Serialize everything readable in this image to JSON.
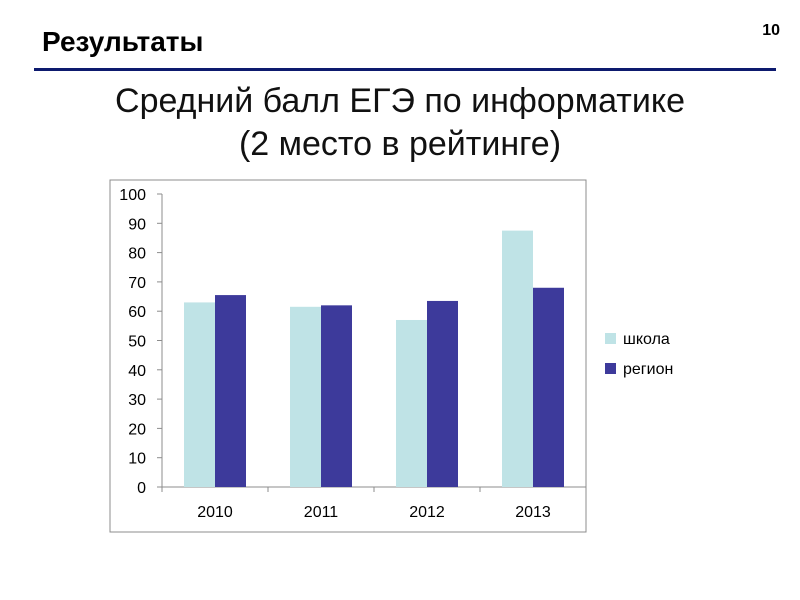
{
  "header": {
    "title": "Результаты",
    "slide_number": "10"
  },
  "chart_title": {
    "line1": "Средний балл ЕГЭ по информатике",
    "line2": "(2 место в рейтинге)"
  },
  "chart_data": {
    "type": "bar",
    "categories": [
      "2010",
      "2011",
      "2012",
      "2013"
    ],
    "series": [
      {
        "name": "школа",
        "values": [
          63,
          61.5,
          57,
          87.5
        ],
        "color": "#bfe3e6"
      },
      {
        "name": "регион",
        "values": [
          65.5,
          62,
          63.5,
          68
        ],
        "color": "#3d3a9b"
      }
    ],
    "ylim": [
      0,
      100
    ],
    "yticks": [
      0,
      10,
      20,
      30,
      40,
      50,
      60,
      70,
      80,
      90,
      100
    ],
    "grid": false,
    "legend": "right",
    "xlabel": "",
    "ylabel": ""
  }
}
